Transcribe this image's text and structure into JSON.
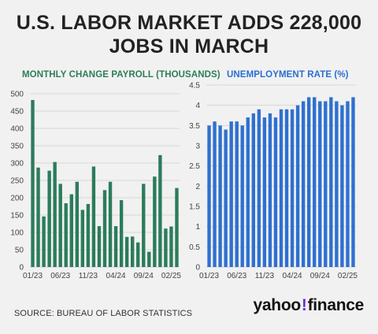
{
  "headline": {
    "line1": "U.S. LABOR MARKET ADDS 228,000",
    "line2": "JOBS IN MARCH"
  },
  "source": "SOURCE: BUREAU OF LABOR STATISTICS",
  "brand": {
    "name": "yahoo",
    "mark": "!",
    "suffix": "finance"
  },
  "colors": {
    "payroll": "#2b7c5b",
    "unemployment": "#2f70d0",
    "title_payroll": "#2e7d57",
    "title_unemployment": "#2a6fcf"
  },
  "chart_data": [
    {
      "type": "bar",
      "title": "MONTHLY CHANGE PAYROLL (THOUSANDS)",
      "xlabel": "",
      "ylabel": "",
      "ylim": [
        0,
        500
      ],
      "yticks": [
        0,
        50,
        100,
        150,
        200,
        250,
        300,
        350,
        400,
        450,
        500
      ],
      "xtick_labels": [
        "01/23",
        "06/23",
        "11/23",
        "04/24",
        "09/24",
        "02/25"
      ],
      "xtick_indices": [
        0,
        5,
        10,
        15,
        20,
        25
      ],
      "grid": true,
      "categories": [
        "01/23",
        "02/23",
        "03/23",
        "04/23",
        "05/23",
        "06/23",
        "07/23",
        "08/23",
        "09/23",
        "10/23",
        "11/23",
        "12/23",
        "01/24",
        "02/24",
        "03/24",
        "04/24",
        "05/24",
        "06/24",
        "07/24",
        "08/24",
        "09/24",
        "10/24",
        "11/24",
        "12/24",
        "01/25",
        "02/25",
        "03/25"
      ],
      "values": [
        482,
        287,
        146,
        278,
        303,
        240,
        184,
        210,
        246,
        165,
        182,
        290,
        118,
        222,
        246,
        118,
        193,
        87,
        88,
        71,
        240,
        44,
        261,
        323,
        111,
        117,
        228
      ]
    },
    {
      "type": "bar",
      "title": "UNEMPLOYMENT RATE (%)",
      "xlabel": "",
      "ylabel": "",
      "ylim": [
        0,
        4.5
      ],
      "yticks": [
        0,
        0.5,
        1,
        1.5,
        2,
        2.5,
        3,
        3.5,
        4,
        4.5
      ],
      "ytick_labels": [
        "0",
        "0.5",
        "1",
        "1.5",
        "2",
        "2.5",
        "3",
        "3.5",
        "4",
        "4.5"
      ],
      "xtick_labels": [
        "01/23",
        "06/23",
        "11/23",
        "04/24",
        "09/24",
        "02/25"
      ],
      "xtick_indices": [
        0,
        5,
        10,
        15,
        20,
        25
      ],
      "grid": true,
      "categories": [
        "01/23",
        "02/23",
        "03/23",
        "04/23",
        "05/23",
        "06/23",
        "07/23",
        "08/23",
        "09/23",
        "10/23",
        "11/23",
        "12/23",
        "01/24",
        "02/24",
        "03/24",
        "04/24",
        "05/24",
        "06/24",
        "07/24",
        "08/24",
        "09/24",
        "10/24",
        "11/24",
        "12/24",
        "01/25",
        "02/25",
        "03/25"
      ],
      "values": [
        3.5,
        3.6,
        3.5,
        3.4,
        3.6,
        3.6,
        3.5,
        3.7,
        3.8,
        3.9,
        3.7,
        3.8,
        3.7,
        3.9,
        3.9,
        3.9,
        4.0,
        4.1,
        4.2,
        4.2,
        4.1,
        4.1,
        4.2,
        4.1,
        4.0,
        4.1,
        4.2
      ]
    }
  ]
}
